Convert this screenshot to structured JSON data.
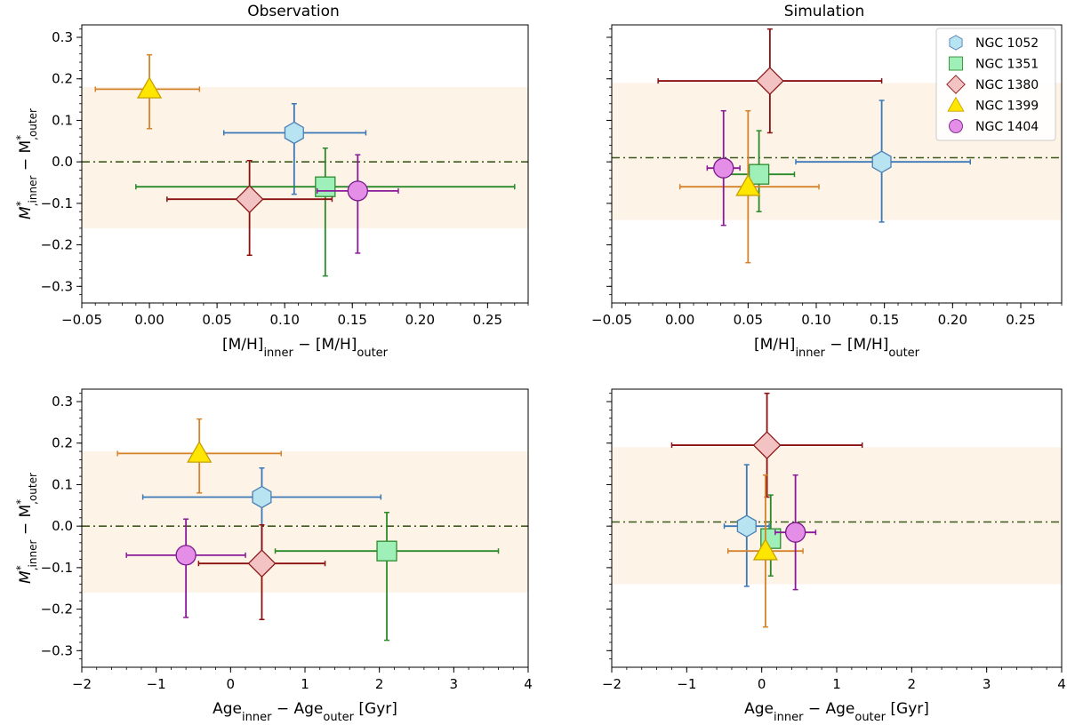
{
  "columns": [
    "Observation",
    "Simulation"
  ],
  "legend_labels": [
    "NGC 1052",
    "NGC 1351",
    "NGC 1380",
    "NGC 1399",
    "NGC 1404"
  ],
  "axis_labels": {
    "mh_x": {
      "main1": "[M/H]",
      "sub1": "inner",
      "mid": " − [M/H]",
      "sub2": "outer"
    },
    "age_x": {
      "main1": "Age",
      "sub1": "inner",
      "mid": " − Age",
      "sub2": "outer",
      "tail": " [Gyr]"
    },
    "y": {
      "m1": "M",
      "sup1": "*",
      "sub1": ",inner",
      "mid": " − M",
      "sup2": "*",
      "sub2": ",outer"
    }
  },
  "chart_data": [
    {
      "type": "scatter",
      "title": "Observation",
      "xlabel": "[M/H]inner − [M/H]outer",
      "ylabel": "M*,inner − M*,outer",
      "xlim": [
        -0.05,
        0.28
      ],
      "ylim": [
        -0.34,
        0.33
      ],
      "xticks": [
        -0.05,
        0.0,
        0.05,
        0.1,
        0.15,
        0.2,
        0.25
      ],
      "yticks": [
        -0.3,
        -0.2,
        -0.1,
        0.0,
        0.1,
        0.2,
        0.3
      ],
      "shaded_band": [
        -0.16,
        0.18
      ],
      "reference_line": 0.0,
      "points": [
        {
          "name": "NGC 1052",
          "x": 0.107,
          "y": 0.07,
          "x_err": [
            0.052,
            0.053
          ],
          "y_err": [
            0.148,
            0.07
          ]
        },
        {
          "name": "NGC 1351",
          "x": 0.13,
          "y": -0.06,
          "x_err": [
            0.14,
            0.14
          ],
          "y_err": [
            0.215,
            0.093
          ]
        },
        {
          "name": "NGC 1380",
          "x": 0.074,
          "y": -0.09,
          "x_err": [
            0.061,
            0.061
          ],
          "y_err": [
            0.135,
            0.093
          ]
        },
        {
          "name": "NGC 1399",
          "x": 0.0,
          "y": 0.175,
          "x_err": [
            0.04,
            0.037
          ],
          "y_err": [
            0.095,
            0.083
          ]
        },
        {
          "name": "NGC 1404",
          "x": 0.154,
          "y": -0.07,
          "x_err": [
            0.03,
            0.03
          ],
          "y_err": [
            0.15,
            0.087
          ]
        }
      ]
    },
    {
      "type": "scatter",
      "title": "Simulation",
      "xlabel": "[M/H]inner − [M/H]outer",
      "ylabel": "",
      "xlim": [
        -0.05,
        0.28
      ],
      "ylim": [
        -0.34,
        0.33
      ],
      "xticks": [
        -0.05,
        0.0,
        0.05,
        0.1,
        0.15,
        0.2,
        0.25
      ],
      "yticks": [
        -0.3,
        -0.2,
        -0.1,
        0.0,
        0.1,
        0.2,
        0.3
      ],
      "shaded_band": [
        -0.14,
        0.19
      ],
      "reference_line": 0.01,
      "legend": "top-right",
      "points": [
        {
          "name": "NGC 1052",
          "x": 0.148,
          "y": 0.0,
          "x_err": [
            0.063,
            0.065
          ],
          "y_err": [
            0.145,
            0.148
          ]
        },
        {
          "name": "NGC 1351",
          "x": 0.058,
          "y": -0.03,
          "x_err": [
            0.026,
            0.026
          ],
          "y_err": [
            0.09,
            0.105
          ]
        },
        {
          "name": "NGC 1380",
          "x": 0.066,
          "y": 0.195,
          "x_err": [
            0.082,
            0.082
          ],
          "y_err": [
            0.125,
            0.125
          ]
        },
        {
          "name": "NGC 1399",
          "x": 0.05,
          "y": -0.06,
          "x_err": [
            0.05,
            0.052
          ],
          "y_err": [
            0.183,
            0.183
          ]
        },
        {
          "name": "NGC 1404",
          "x": 0.032,
          "y": -0.015,
          "x_err": [
            0.012,
            0.012
          ],
          "y_err": [
            0.138,
            0.138
          ]
        }
      ]
    },
    {
      "type": "scatter",
      "title": "",
      "xlabel": "Ageinner − Ageouter [Gyr]",
      "ylabel": "M*,inner − M*,outer",
      "xlim": [
        -2,
        4
      ],
      "ylim": [
        -0.34,
        0.33
      ],
      "xticks": [
        -2,
        -1,
        0,
        1,
        2,
        3,
        4
      ],
      "yticks": [
        -0.3,
        -0.2,
        -0.1,
        0.0,
        0.1,
        0.2,
        0.3
      ],
      "shaded_band": [
        -0.16,
        0.18
      ],
      "reference_line": 0.0,
      "points": [
        {
          "name": "NGC 1052",
          "x": 0.42,
          "y": 0.07,
          "x_err": [
            1.6,
            1.6
          ],
          "y_err": [
            0.148,
            0.07
          ]
        },
        {
          "name": "NGC 1351",
          "x": 2.1,
          "y": -0.06,
          "x_err": [
            1.5,
            1.5
          ],
          "y_err": [
            0.215,
            0.093
          ]
        },
        {
          "name": "NGC 1380",
          "x": 0.42,
          "y": -0.09,
          "x_err": [
            0.85,
            0.85
          ],
          "y_err": [
            0.135,
            0.093
          ]
        },
        {
          "name": "NGC 1399",
          "x": -0.42,
          "y": 0.175,
          "x_err": [
            1.1,
            1.1
          ],
          "y_err": [
            0.095,
            0.083
          ]
        },
        {
          "name": "NGC 1404",
          "x": -0.6,
          "y": -0.07,
          "x_err": [
            0.8,
            0.8
          ],
          "y_err": [
            0.15,
            0.087
          ]
        }
      ]
    },
    {
      "type": "scatter",
      "title": "",
      "xlabel": "Ageinner − Ageouter [Gyr]",
      "ylabel": "",
      "xlim": [
        -2,
        4
      ],
      "ylim": [
        -0.34,
        0.33
      ],
      "xticks": [
        -2,
        -1,
        0,
        1,
        2,
        3,
        4
      ],
      "yticks": [
        -0.3,
        -0.2,
        -0.1,
        0.0,
        0.1,
        0.2,
        0.3
      ],
      "shaded_band": [
        -0.14,
        0.19
      ],
      "reference_line": 0.01,
      "points": [
        {
          "name": "NGC 1052",
          "x": -0.2,
          "y": 0.0,
          "x_err": [
            0.3,
            0.3
          ],
          "y_err": [
            0.145,
            0.148
          ]
        },
        {
          "name": "NGC 1351",
          "x": 0.12,
          "y": -0.03,
          "x_err": [
            0.08,
            0.08
          ],
          "y_err": [
            0.09,
            0.105
          ]
        },
        {
          "name": "NGC 1380",
          "x": 0.07,
          "y": 0.195,
          "x_err": [
            1.27,
            1.27
          ],
          "y_err": [
            0.125,
            0.125
          ]
        },
        {
          "name": "NGC 1399",
          "x": 0.05,
          "y": -0.06,
          "x_err": [
            0.5,
            0.5
          ],
          "y_err": [
            0.183,
            0.183
          ]
        },
        {
          "name": "NGC 1404",
          "x": 0.45,
          "y": -0.015,
          "x_err": [
            0.27,
            0.27
          ],
          "y_err": [
            0.138,
            0.138
          ]
        }
      ]
    }
  ],
  "colors": {
    "band": "#fdf3e6",
    "ref_line": "#3d5a1c",
    "NGC 1052": {
      "edge": "#4a7fb5",
      "fill": "#b7e4f0",
      "err": "#3b78b8"
    },
    "NGC 1351": {
      "edge": "#2e8b2e",
      "fill": "#9ef0b8",
      "err": "#2a8a2a"
    },
    "NGC 1380": {
      "edge": "#8b1a1a",
      "fill": "#f3c2c2",
      "err": "#8b1010"
    },
    "NGC 1399": {
      "edge": "#c8a000",
      "fill": "#ffe600",
      "err": "#d4832c"
    },
    "NGC 1404": {
      "edge": "#7a1a8a",
      "fill": "#e48ee8",
      "err": "#8a1a9a"
    }
  },
  "markers": {
    "NGC 1052": "hexagon",
    "NGC 1351": "square",
    "NGC 1380": "diamond",
    "NGC 1399": "triangle",
    "NGC 1404": "circle"
  }
}
